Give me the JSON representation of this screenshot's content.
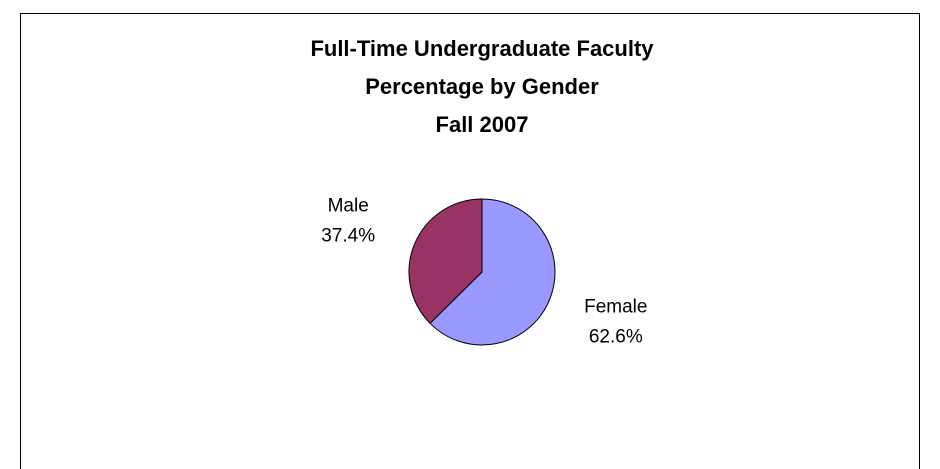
{
  "chart_data": {
    "type": "pie",
    "title": [
      "Full-Time Undergraduate Faculty",
      "Percentage by Gender",
      "Fall 2007"
    ],
    "categories": [
      "Female",
      "Male"
    ],
    "values": [
      62.6,
      37.4
    ],
    "value_labels": [
      "62.6%",
      "37.4%"
    ],
    "colors": [
      "#9999ff",
      "#993366"
    ]
  }
}
